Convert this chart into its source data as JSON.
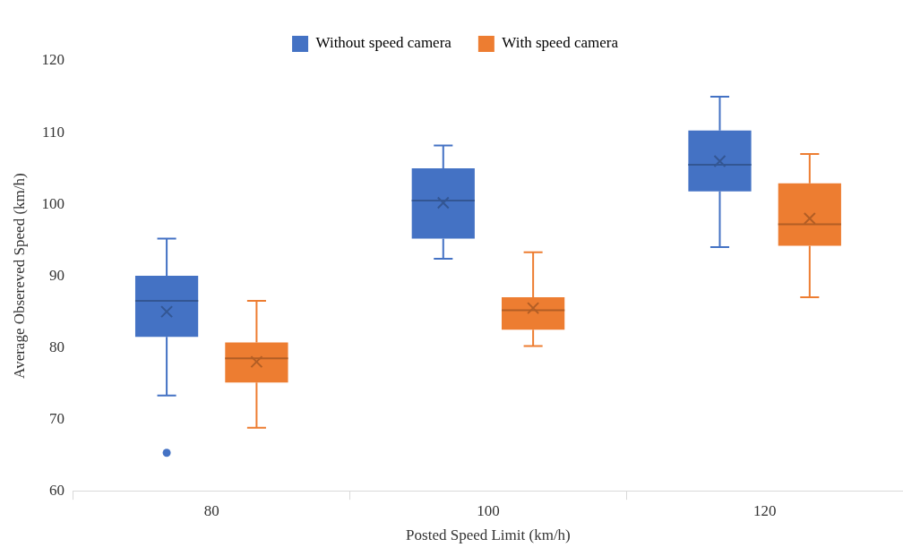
{
  "chart_data": {
    "type": "box",
    "xlabel": "Posted Speed Limit (km/h)",
    "ylabel": "Average Obsereved Speed (km/h)",
    "categories": [
      "80",
      "100",
      "120"
    ],
    "ylim": [
      60,
      120
    ],
    "yticks": [
      60,
      70,
      80,
      90,
      100,
      110,
      120
    ],
    "grid": false,
    "legend": "top",
    "series": [
      {
        "name": "Without speed camera",
        "color": "#4472c4",
        "boxes": [
          {
            "low": 73.3,
            "q1": 81.5,
            "median": 86.5,
            "q3": 90,
            "high": 95.2,
            "mean": 85,
            "outliers": [
              65.3
            ]
          },
          {
            "low": 92.4,
            "q1": 95.2,
            "median": 100.5,
            "q3": 105,
            "high": 108.2,
            "mean": 100.2
          },
          {
            "low": 94,
            "q1": 101.8,
            "median": 105.5,
            "q3": 110.3,
            "high": 115,
            "mean": 106
          }
        ]
      },
      {
        "name": "With speed camera",
        "color": "#ed7d31",
        "boxes": [
          {
            "low": 68.8,
            "q1": 75.1,
            "median": 78.5,
            "q3": 80.7,
            "high": 86.5,
            "mean": 78
          },
          {
            "low": 80.2,
            "q1": 82.5,
            "median": 85.2,
            "q3": 87,
            "high": 93.3,
            "mean": 85.5
          },
          {
            "low": 87,
            "q1": 94.2,
            "median": 97.2,
            "q3": 102.9,
            "high": 107,
            "mean": 98
          }
        ]
      }
    ]
  }
}
